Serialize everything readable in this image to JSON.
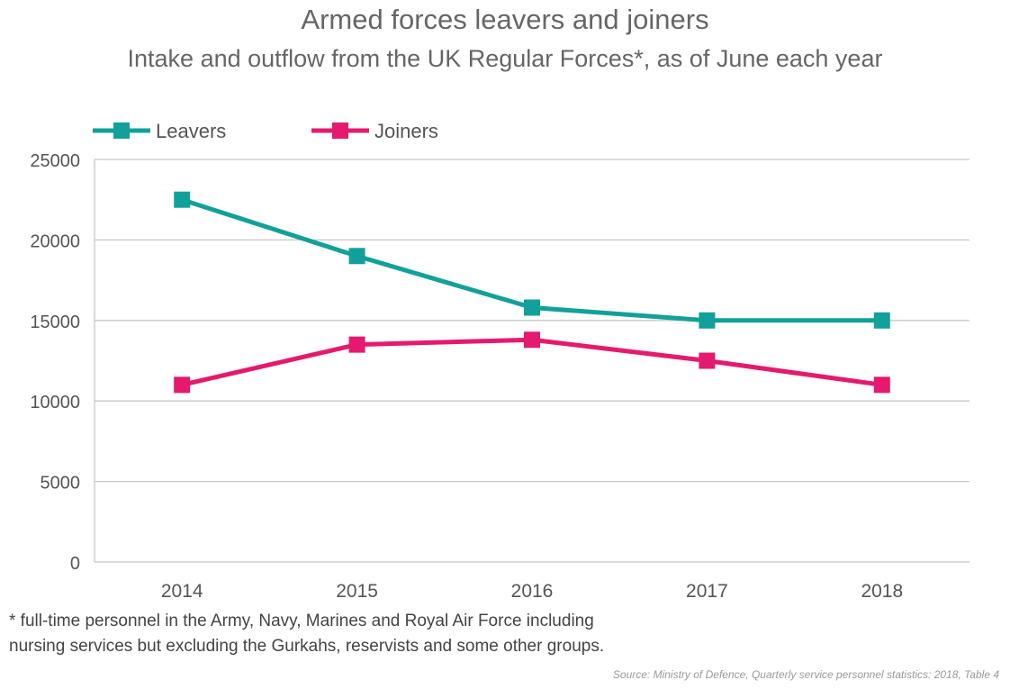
{
  "chart_data": {
    "type": "line",
    "title": "Armed forces leavers and joiners",
    "subtitle": "Intake and outflow from the UK Regular Forces*, as of June each year",
    "categories": [
      "2014",
      "2015",
      "2016",
      "2017",
      "2018"
    ],
    "series": [
      {
        "name": "Leavers",
        "color": "#12a19a",
        "values": [
          22500,
          19000,
          15800,
          15000,
          15000
        ]
      },
      {
        "name": "Joiners",
        "color": "#e5196e",
        "values": [
          11000,
          13500,
          13800,
          12500,
          11000
        ]
      }
    ],
    "yticks": [
      "0",
      "5000",
      "10000",
      "15000",
      "20000",
      "25000"
    ],
    "ylim": [
      0,
      25000
    ],
    "xlabel": "",
    "ylabel": "",
    "grid": true,
    "legend": "top-left",
    "marker": "square"
  },
  "footnote": "* full-time personnel in the Army, Navy, Marines and Royal Air Force including nursing services but excluding the Gurkahs, reservists and some other groups.",
  "source": "Source: Ministry of Defence, Quarterly service personnel statistics: 2018, Table 4"
}
